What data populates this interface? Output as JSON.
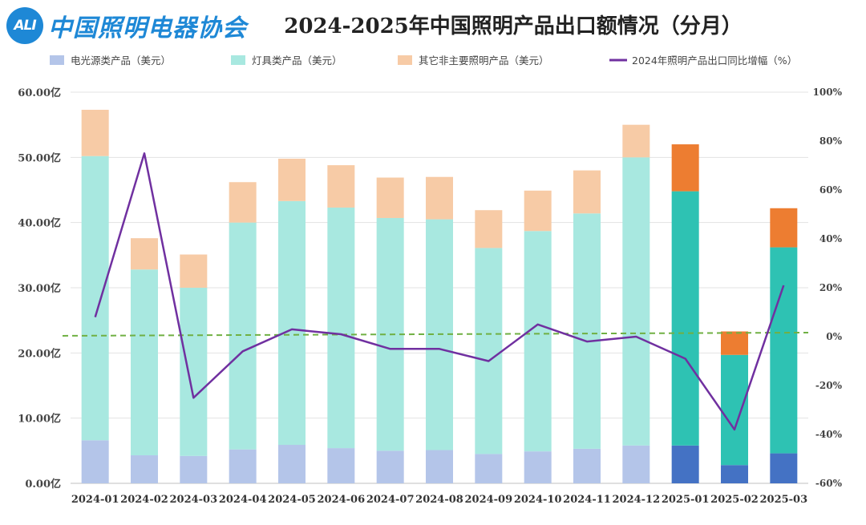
{
  "logo": {
    "badge": "ALI",
    "org": "中国照明电器协会"
  },
  "title": "2024-2025年中国照明产品出口额情况（分月）",
  "legend": [
    {
      "label": "电光源类产品（美元）",
      "color": "#b4c5e9",
      "kind": "rect"
    },
    {
      "label": "灯具类产品（美元）",
      "color": "#a8e8e0",
      "kind": "rect"
    },
    {
      "label": "其它非主要照明产品（美元）",
      "color": "#f7cba6",
      "kind": "rect"
    },
    {
      "label": "2024年照明产品出口同比增幅（%）",
      "color": "#7030a0",
      "kind": "line"
    }
  ],
  "chart_data": {
    "type": "bar",
    "stacked": true,
    "title": "2024-2025年中国照明产品出口额情况（分月）",
    "categories": [
      "2024-01",
      "2024-02",
      "2024-03",
      "2024-04",
      "2024-05",
      "2024-06",
      "2024-07",
      "2024-08",
      "2024-09",
      "2024-10",
      "2024-11",
      "2024-12",
      "2025-01",
      "2025-02",
      "2025-03"
    ],
    "series": [
      {
        "name": "电光源类产品（美元）",
        "unit": "亿",
        "values": [
          6.6,
          4.3,
          4.2,
          5.2,
          5.9,
          5.4,
          5.0,
          5.1,
          4.5,
          4.9,
          5.3,
          5.8,
          5.8,
          2.8,
          4.6
        ],
        "color_2024": "#b4c5e9",
        "color_2025": "#4472c4"
      },
      {
        "name": "灯具类产品（美元）",
        "unit": "亿",
        "values": [
          43.6,
          28.5,
          25.8,
          34.8,
          37.4,
          36.9,
          35.7,
          35.4,
          31.6,
          33.8,
          36.1,
          44.2,
          39.0,
          16.9,
          31.6
        ],
        "color_2024": "#a8e8e0",
        "color_2025": "#2ec2b3"
      },
      {
        "name": "其它非主要照明产品（美元）",
        "unit": "亿",
        "values": [
          7.1,
          4.8,
          5.1,
          6.2,
          6.5,
          6.5,
          6.2,
          6.5,
          5.8,
          6.2,
          6.6,
          5.0,
          7.2,
          3.6,
          6.0
        ],
        "color_2024": "#f7cba6",
        "color_2025": "#ed7d31"
      },
      {
        "name": "2024年照明产品出口同比增幅（%）",
        "type": "line",
        "axis": "right",
        "unit": "%",
        "color": "#7030a0",
        "values": [
          8,
          75,
          -25,
          -6,
          3,
          1,
          -5,
          -5,
          -10,
          5,
          -2,
          0,
          -9,
          -38,
          21
        ]
      }
    ],
    "reference_line": {
      "axis": "right",
      "value": 1,
      "style": "dashed",
      "color": "#70b043"
    },
    "y_left": {
      "ticks": [
        "0.00亿",
        "10.00亿",
        "20.00亿",
        "30.00亿",
        "40.00亿",
        "50.00亿",
        "60.00亿"
      ],
      "lim": [
        0,
        60
      ]
    },
    "y_right": {
      "ticks": [
        "-60%",
        "-40%",
        "-20%",
        "0%",
        "20%",
        "40%",
        "60%",
        "80%",
        "100%"
      ],
      "lim": [
        -60,
        100
      ]
    }
  }
}
